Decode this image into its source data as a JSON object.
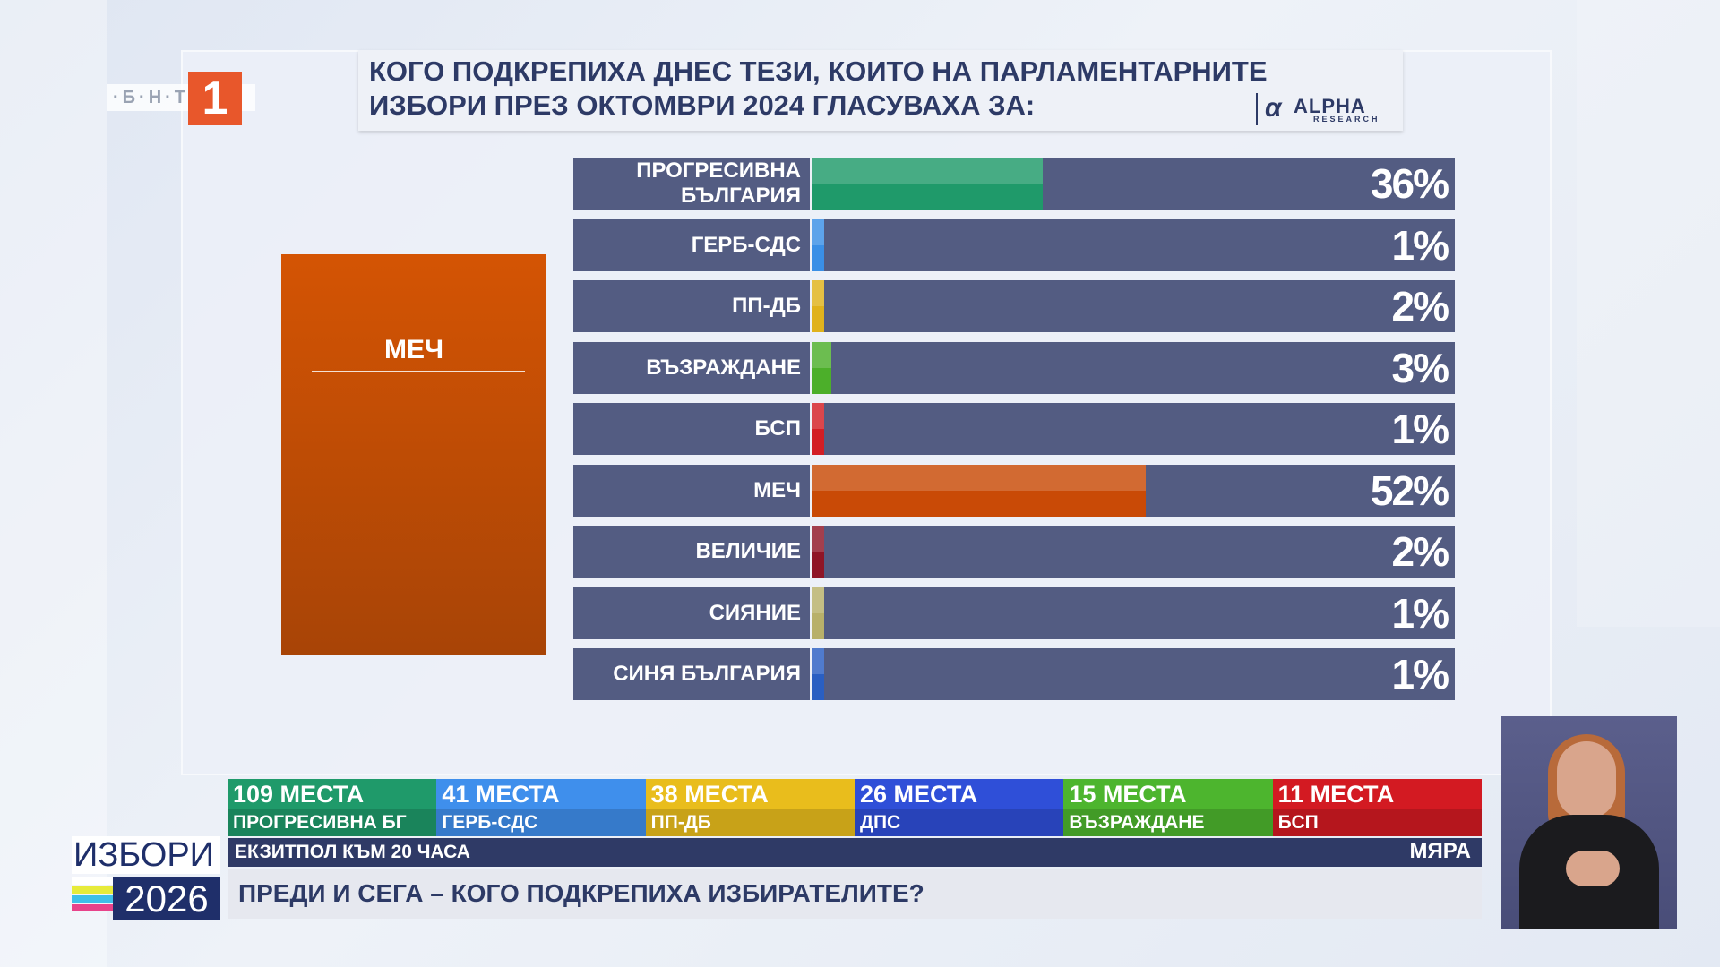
{
  "logo": {
    "bnt": "·Б·Н·Т·",
    "channel": "1"
  },
  "title": {
    "line1": "КОГО ПОДКРЕПИХА ДНЕС ТЕЗИ, КОИТО НА ПАРЛАМЕНТАРНИТЕ",
    "line2": "ИЗБОРИ ПРЕЗ ОКТОМВРИ 2024 ГЛАСУВАХА ЗА:",
    "source_name": "ALPHA",
    "source_sub": "RESEARCH"
  },
  "selected_party": "МЕЧ",
  "chart_data": {
    "type": "bar",
    "orientation": "horizontal",
    "categories": [
      "ПРОГРЕСИВНА БЪЛГАРИЯ",
      "ГЕРБ-СДС",
      "ПП-ДБ",
      "ВЪЗРАЖДАНЕ",
      "БСП",
      "МЕЧ",
      "ВЕЛИЧИЕ",
      "СИЯНИЕ",
      "СИНЯ БЪЛГАРИЯ"
    ],
    "values": [
      36,
      1,
      2,
      3,
      1,
      52,
      2,
      1,
      1
    ],
    "labels": [
      "36%",
      "1%",
      "2%",
      "3%",
      "1%",
      "52%",
      "2%",
      "1%",
      "1%"
    ],
    "colors": [
      "#1f9a6a",
      "#3a8fe6",
      "#e0b21c",
      "#4caf2a",
      "#d31e25",
      "#c94a06",
      "#8f1526",
      "#b8b06a",
      "#2a5fc2"
    ],
    "xlim": [
      0,
      100
    ]
  },
  "seats": [
    {
      "count": "109 МЕСТА",
      "party": "ПРОГРЕСИВНА БГ",
      "color": "#1f9a6a"
    },
    {
      "count": "41 МЕСТА",
      "party": "ГЕРБ-СДС",
      "color": "#3f8fec"
    },
    {
      "count": "38 МЕСТА",
      "party": "ПП-ДБ",
      "color": "#e9bd1c"
    },
    {
      "count": "26 МЕСТА",
      "party": "ДПС",
      "color": "#2f4fd8"
    },
    {
      "count": "15 МЕСТА",
      "party": "ВЪЗРАЖДАНЕ",
      "color": "#4db52e"
    },
    {
      "count": "11 МЕСТА",
      "party": "БСП",
      "color": "#d31a22"
    }
  ],
  "strip": {
    "left": "ЕКЗИТПОЛ КЪМ 20 ЧАСА",
    "right": "МЯРА"
  },
  "question": "ПРЕДИ И СЕГА – КОГО ПОДКРЕПИХА ИЗБИРАТЕЛИТЕ?",
  "izbori": {
    "word": "ИЗБОРИ",
    "year": "2026"
  }
}
